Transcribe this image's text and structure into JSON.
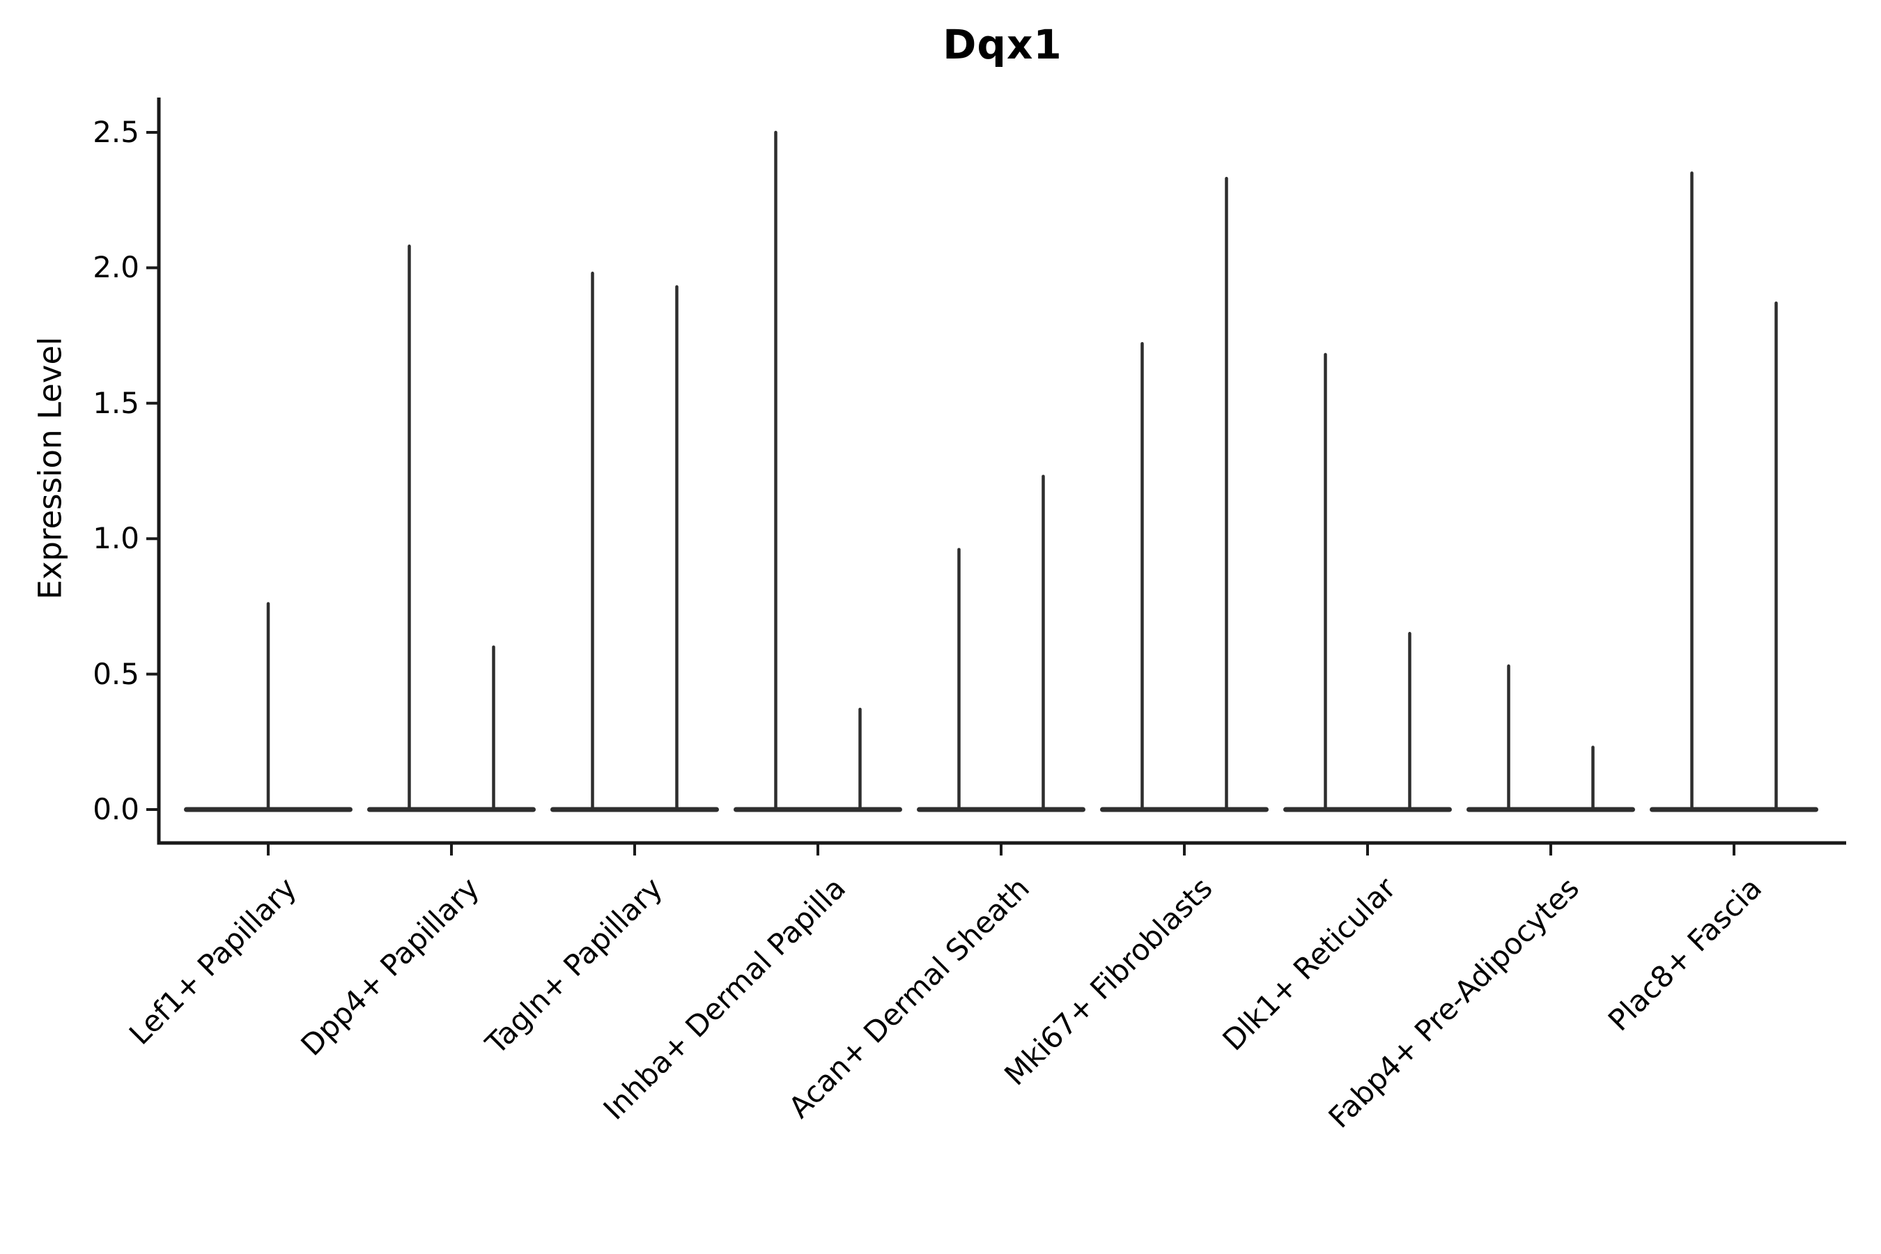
{
  "figure": {
    "title": "Dqx1",
    "ylabel": "Expression Level"
  },
  "chart_data": {
    "type": "violin",
    "title": "Dqx1",
    "ylabel": "Expression Level",
    "xlabel": "",
    "grid": false,
    "legend": "none",
    "background_color": "#ffffff",
    "violin_color": "#2e2e2e",
    "axis_color": "#1a1a1a",
    "text_color": "#000000",
    "ytick_labels": [
      "0.0",
      "0.5",
      "1.0",
      "1.5",
      "2.0",
      "2.5"
    ],
    "yticks": [
      0.0,
      0.5,
      1.0,
      1.5,
      2.0,
      2.5
    ],
    "ylim": [
      -0.12,
      2.63
    ],
    "baseline_value": 0.0,
    "categories": [
      "Lef1+ Papillary",
      "Dpp4+ Papillary",
      "Tagln+ Papillary",
      "Inhba+ Dermal Papilla",
      "Acan+ Dermal Sheath",
      "Mki67+ Fibroblasts",
      "Dlk1+ Reticular",
      "Fabp4+ Pre-Adipocytes",
      "Plac8+ Fascia"
    ],
    "violins": [
      {
        "category": "Lef1+ Papillary",
        "max_values": [
          0.76
        ]
      },
      {
        "category": "Dpp4+ Papillary",
        "max_values": [
          2.08,
          0.6
        ]
      },
      {
        "category": "Tagln+ Papillary",
        "max_values": [
          1.98,
          1.93
        ]
      },
      {
        "category": "Inhba+ Dermal Papilla",
        "max_values": [
          2.5,
          0.37
        ]
      },
      {
        "category": "Acan+ Dermal Sheath",
        "max_values": [
          0.96,
          1.23
        ]
      },
      {
        "category": "Mki67+ Fibroblasts",
        "max_values": [
          1.72,
          2.33
        ]
      },
      {
        "category": "Dlk1+ Reticular",
        "max_values": [
          1.68,
          0.65
        ]
      },
      {
        "category": "Fabp4+ Pre-Adipocytes",
        "max_values": [
          0.53,
          0.23
        ]
      },
      {
        "category": "Plac8+ Fascia",
        "max_values": [
          2.35,
          1.87
        ]
      }
    ]
  }
}
